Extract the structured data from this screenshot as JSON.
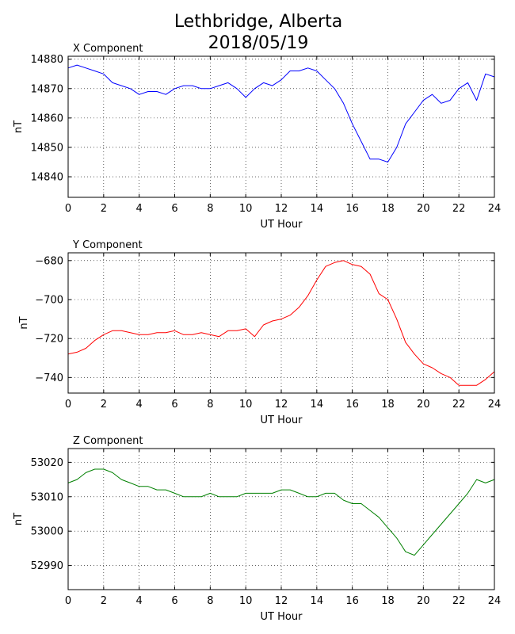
{
  "title_line1": "Lethbridge, Alberta",
  "title_line2": "2018/05/19",
  "chart_data": [
    {
      "type": "line",
      "title": "X Component",
      "xlabel": "UT Hour",
      "ylabel": "nT",
      "xlim": [
        0,
        24
      ],
      "ylim": [
        14833,
        14881
      ],
      "xticks": [
        0,
        2,
        4,
        6,
        8,
        10,
        12,
        14,
        16,
        18,
        20,
        22,
        24
      ],
      "yticks": [
        14840,
        14850,
        14860,
        14870,
        14880
      ],
      "grid": true,
      "color": "#0000ff",
      "x": [
        0,
        0.5,
        1,
        1.5,
        2,
        2.5,
        3,
        3.5,
        4,
        4.5,
        5,
        5.5,
        6,
        6.5,
        7,
        7.5,
        8,
        8.5,
        9,
        9.5,
        10,
        10.5,
        11,
        11.5,
        12,
        12.5,
        13,
        13.5,
        14,
        14.5,
        15,
        15.5,
        16,
        16.5,
        17,
        17.5,
        18,
        18.5,
        19,
        19.5,
        20,
        20.5,
        21,
        21.5,
        22,
        22.5,
        23,
        23.5,
        24
      ],
      "values": [
        14877,
        14878,
        14877,
        14876,
        14875,
        14872,
        14871,
        14870,
        14868,
        14869,
        14869,
        14868,
        14870,
        14871,
        14871,
        14870,
        14870,
        14871,
        14872,
        14870,
        14867,
        14870,
        14872,
        14871,
        14873,
        14876,
        14876,
        14877,
        14876,
        14873,
        14870,
        14865,
        14858,
        14852,
        14846,
        14846,
        14845,
        14850,
        14858,
        14862,
        14866,
        14868,
        14865,
        14866,
        14870,
        14872,
        14866,
        14875,
        14874
      ]
    },
    {
      "type": "line",
      "title": "Y Component",
      "xlabel": "UT Hour",
      "ylabel": "nT",
      "xlim": [
        0,
        24
      ],
      "ylim": [
        -748,
        -676
      ],
      "xticks": [
        0,
        2,
        4,
        6,
        8,
        10,
        12,
        14,
        16,
        18,
        20,
        22,
        24
      ],
      "yticks": [
        -680,
        -700,
        -720,
        -740
      ],
      "grid": true,
      "color": "#ff0000",
      "x": [
        0,
        0.5,
        1,
        1.5,
        2,
        2.5,
        3,
        3.5,
        4,
        4.5,
        5,
        5.5,
        6,
        6.5,
        7,
        7.5,
        8,
        8.5,
        9,
        9.5,
        10,
        10.5,
        11,
        11.5,
        12,
        12.5,
        13,
        13.5,
        14,
        14.5,
        15,
        15.5,
        16,
        16.5,
        17,
        17.5,
        18,
        18.5,
        19,
        19.5,
        20,
        20.5,
        21,
        21.5,
        22,
        22.5,
        23,
        23.5,
        24
      ],
      "values": [
        -728,
        -727,
        -725,
        -721,
        -718,
        -716,
        -716,
        -717,
        -718,
        -718,
        -717,
        -717,
        -716,
        -718,
        -718,
        -717,
        -718,
        -719,
        -716,
        -716,
        -715,
        -719,
        -713,
        -711,
        -710,
        -708,
        -704,
        -698,
        -690,
        -683,
        -681,
        -680,
        -682,
        -683,
        -687,
        -697,
        -700,
        -710,
        -722,
        -728,
        -733,
        -735,
        -738,
        -740,
        -744,
        -744,
        -744,
        -741,
        -737
      ]
    },
    {
      "type": "line",
      "title": "Z Component",
      "xlabel": "UT Hour",
      "ylabel": "nT",
      "xlim": [
        0,
        24
      ],
      "ylim": [
        52983,
        53024
      ],
      "xticks": [
        0,
        2,
        4,
        6,
        8,
        10,
        12,
        14,
        16,
        18,
        20,
        22,
        24
      ],
      "yticks": [
        52990,
        53000,
        53010,
        53020
      ],
      "grid": true,
      "color": "#008000",
      "x": [
        0,
        0.5,
        1,
        1.5,
        2,
        2.5,
        3,
        3.5,
        4,
        4.5,
        5,
        5.5,
        6,
        6.5,
        7,
        7.5,
        8,
        8.5,
        9,
        9.5,
        10,
        10.5,
        11,
        11.5,
        12,
        12.5,
        13,
        13.5,
        14,
        14.5,
        15,
        15.5,
        16,
        16.5,
        17,
        17.5,
        18,
        18.5,
        19,
        19.5,
        20,
        20.5,
        21,
        21.5,
        22,
        22.5,
        23,
        23.5,
        24
      ],
      "values": [
        53014,
        53015,
        53017,
        53018,
        53018,
        53017,
        53015,
        53014,
        53013,
        53013,
        53012,
        53012,
        53011,
        53010,
        53010,
        53010,
        53011,
        53010,
        53010,
        53010,
        53011,
        53011,
        53011,
        53011,
        53012,
        53012,
        53011,
        53010,
        53010,
        53011,
        53011,
        53009,
        53008,
        53008,
        53006,
        53004,
        53001,
        52998,
        52994,
        52993,
        52996,
        52999,
        53002,
        53005,
        53008,
        53011,
        53015,
        53014,
        53015
      ]
    }
  ]
}
